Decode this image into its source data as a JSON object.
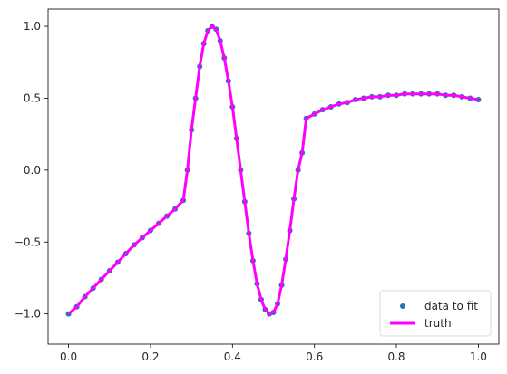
{
  "chart_data": {
    "type": "scatter",
    "xlim": [
      -0.05,
      1.05
    ],
    "ylim": [
      -1.21,
      1.12
    ],
    "xticks": [
      "0.0",
      "0.2",
      "0.4",
      "0.6",
      "0.8",
      "1.0"
    ],
    "xtick_values": [
      0.0,
      0.2,
      0.4,
      0.6,
      0.8,
      1.0
    ],
    "yticks": [
      "−1.0",
      "−0.5",
      "0.0",
      "0.5",
      "1.0"
    ],
    "ytick_values": [
      -1.0,
      -0.5,
      0.0,
      0.5,
      1.0
    ],
    "grid": false,
    "legend_position": "lower right",
    "series": [
      {
        "name": "data to fit",
        "kind": "scatter",
        "color": "#1f77b4",
        "x": [
          0.0,
          0.02,
          0.04,
          0.06,
          0.08,
          0.1,
          0.12,
          0.14,
          0.16,
          0.18,
          0.2,
          0.22,
          0.24,
          0.26,
          0.28,
          0.29,
          0.3,
          0.31,
          0.32,
          0.33,
          0.34,
          0.35,
          0.36,
          0.37,
          0.38,
          0.39,
          0.4,
          0.41,
          0.42,
          0.43,
          0.44,
          0.45,
          0.46,
          0.47,
          0.48,
          0.49,
          0.5,
          0.51,
          0.52,
          0.53,
          0.54,
          0.55,
          0.56,
          0.57,
          0.58,
          0.6,
          0.62,
          0.64,
          0.66,
          0.68,
          0.7,
          0.72,
          0.74,
          0.76,
          0.78,
          0.8,
          0.82,
          0.84,
          0.86,
          0.88,
          0.9,
          0.92,
          0.94,
          0.96,
          0.98,
          1.0
        ],
        "y": [
          -1.0,
          -0.95,
          -0.88,
          -0.82,
          -0.76,
          -0.7,
          -0.64,
          -0.58,
          -0.52,
          -0.47,
          -0.42,
          -0.37,
          -0.32,
          -0.27,
          -0.21,
          0.0,
          0.28,
          0.5,
          0.72,
          0.88,
          0.97,
          1.0,
          0.98,
          0.9,
          0.78,
          0.62,
          0.44,
          0.22,
          0.0,
          -0.22,
          -0.44,
          -0.63,
          -0.79,
          -0.9,
          -0.97,
          -1.0,
          -0.99,
          -0.93,
          -0.8,
          -0.62,
          -0.42,
          -0.2,
          0.0,
          0.12,
          0.36,
          0.39,
          0.42,
          0.44,
          0.46,
          0.47,
          0.49,
          0.5,
          0.51,
          0.51,
          0.52,
          0.52,
          0.53,
          0.53,
          0.53,
          0.53,
          0.53,
          0.52,
          0.52,
          0.51,
          0.5,
          0.49
        ]
      },
      {
        "name": "truth",
        "kind": "line",
        "color": "#ff00ff",
        "x": [
          0.0,
          0.02,
          0.04,
          0.06,
          0.08,
          0.1,
          0.12,
          0.14,
          0.16,
          0.18,
          0.2,
          0.22,
          0.24,
          0.26,
          0.28,
          0.29,
          0.3,
          0.31,
          0.32,
          0.33,
          0.34,
          0.35,
          0.36,
          0.37,
          0.38,
          0.39,
          0.4,
          0.41,
          0.42,
          0.43,
          0.44,
          0.45,
          0.46,
          0.47,
          0.48,
          0.49,
          0.5,
          0.51,
          0.52,
          0.53,
          0.54,
          0.55,
          0.56,
          0.57,
          0.58,
          0.6,
          0.62,
          0.64,
          0.66,
          0.68,
          0.7,
          0.72,
          0.74,
          0.76,
          0.78,
          0.8,
          0.82,
          0.84,
          0.86,
          0.88,
          0.9,
          0.92,
          0.94,
          0.96,
          0.98,
          1.0
        ],
        "y": [
          -1.0,
          -0.95,
          -0.88,
          -0.82,
          -0.76,
          -0.7,
          -0.64,
          -0.58,
          -0.52,
          -0.47,
          -0.42,
          -0.37,
          -0.32,
          -0.27,
          -0.21,
          0.0,
          0.28,
          0.5,
          0.72,
          0.88,
          0.97,
          1.0,
          0.98,
          0.9,
          0.78,
          0.62,
          0.44,
          0.22,
          0.0,
          -0.22,
          -0.44,
          -0.63,
          -0.79,
          -0.9,
          -0.97,
          -1.0,
          -0.99,
          -0.93,
          -0.8,
          -0.62,
          -0.42,
          -0.2,
          0.0,
          0.12,
          0.36,
          0.39,
          0.42,
          0.44,
          0.46,
          0.47,
          0.49,
          0.5,
          0.51,
          0.51,
          0.52,
          0.52,
          0.53,
          0.53,
          0.53,
          0.53,
          0.53,
          0.52,
          0.52,
          0.51,
          0.5,
          0.49
        ]
      }
    ]
  }
}
